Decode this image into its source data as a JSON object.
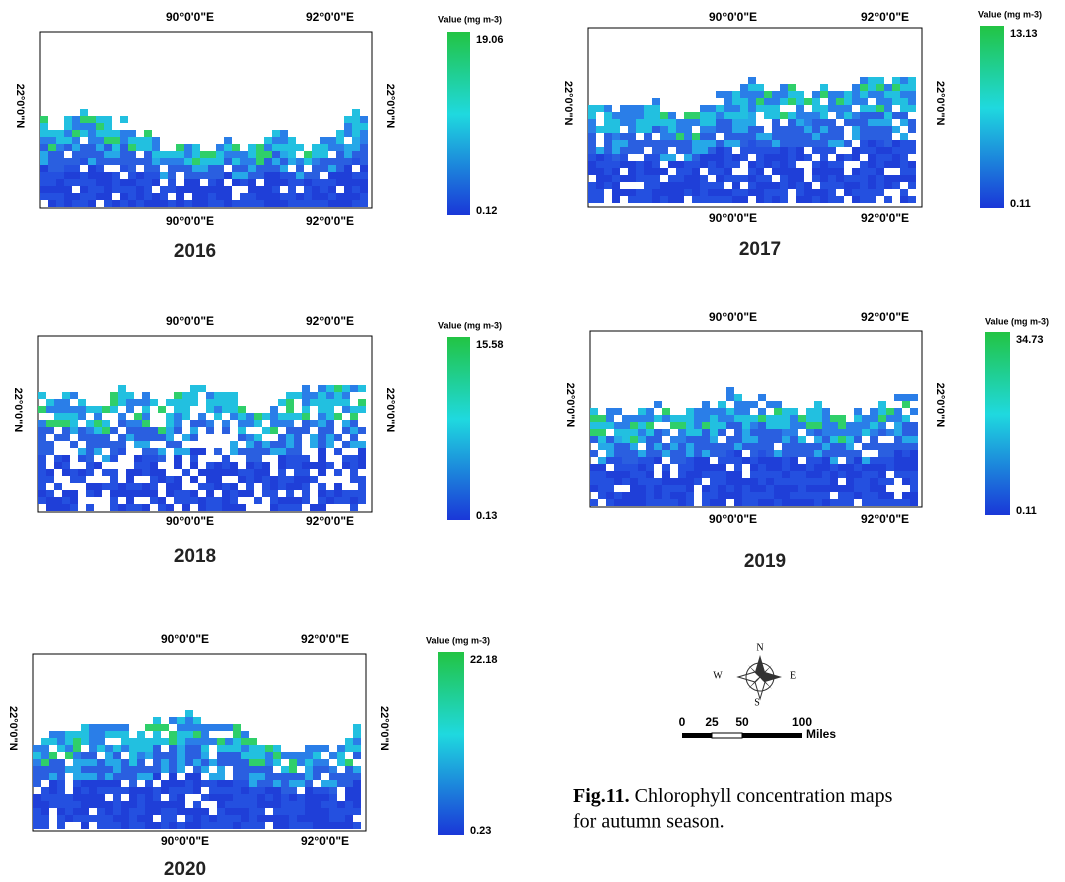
{
  "panels": [
    {
      "year": "2016",
      "top_lon": [
        "90°0'0\"E",
        "92°0'0\"E"
      ],
      "bottom_lon": [
        "90°0'0\"E",
        "92°0'0\"E"
      ],
      "lat_left": "22°0'0\"N",
      "lat_right": "22°0'0\"N",
      "legend": {
        "title": "Value (mg m-3)",
        "max": "19.06",
        "min": "0.12"
      }
    },
    {
      "year": "2017",
      "top_lon": [
        "90°0'0\"E",
        "92°0'0\"E"
      ],
      "bottom_lon": [
        "90°0'0\"E",
        "92°0'0\"E"
      ],
      "lat_left": "22°0'0\"N",
      "lat_right": "22°0'0\"N",
      "legend": {
        "title": "Value (mg m-3)",
        "max": "13.13",
        "min": "0.11"
      }
    },
    {
      "year": "2018",
      "top_lon": [
        "90°0'0\"E",
        "92°0'0\"E"
      ],
      "bottom_lon": [
        "90°0'0\"E",
        "92°0'0\"E"
      ],
      "lat_left": "22°0'0\"N",
      "lat_right": "22°0'0\"N",
      "legend": {
        "title": "Value (mg m-3)",
        "max": "15.58",
        "min": "0.13"
      }
    },
    {
      "year": "2019",
      "top_lon": [
        "90°0'0\"E",
        "92°0'0\"E"
      ],
      "bottom_lon": [
        "90°0'0\"E",
        "92°0'0\"E"
      ],
      "lat_left": "22°0'0\"N",
      "lat_right": "22°0'0\"N",
      "legend": {
        "title": "Value (mg m-3)",
        "max": "34.73",
        "min": "0.11"
      }
    },
    {
      "year": "2020",
      "top_lon": [
        "90°0'0\"E",
        "92°0'0\"E"
      ],
      "bottom_lon": [
        "90°0'0\"E",
        "92°0'0\"E"
      ],
      "lat_left": "22°0'0\"N",
      "lat_right": "22°0'0\"N",
      "legend": {
        "title": "Value (mg m-3)",
        "max": "22.18",
        "min": "0.23"
      }
    }
  ],
  "compass": {
    "n": "N",
    "s": "S",
    "w": "W",
    "e": "E"
  },
  "scale": {
    "ticks": [
      "0",
      "25",
      "50",
      "100"
    ],
    "unit": "Miles"
  },
  "caption": {
    "label": "Fig.11.",
    "text": "Chlorophyll concentration maps for autumn season."
  }
}
